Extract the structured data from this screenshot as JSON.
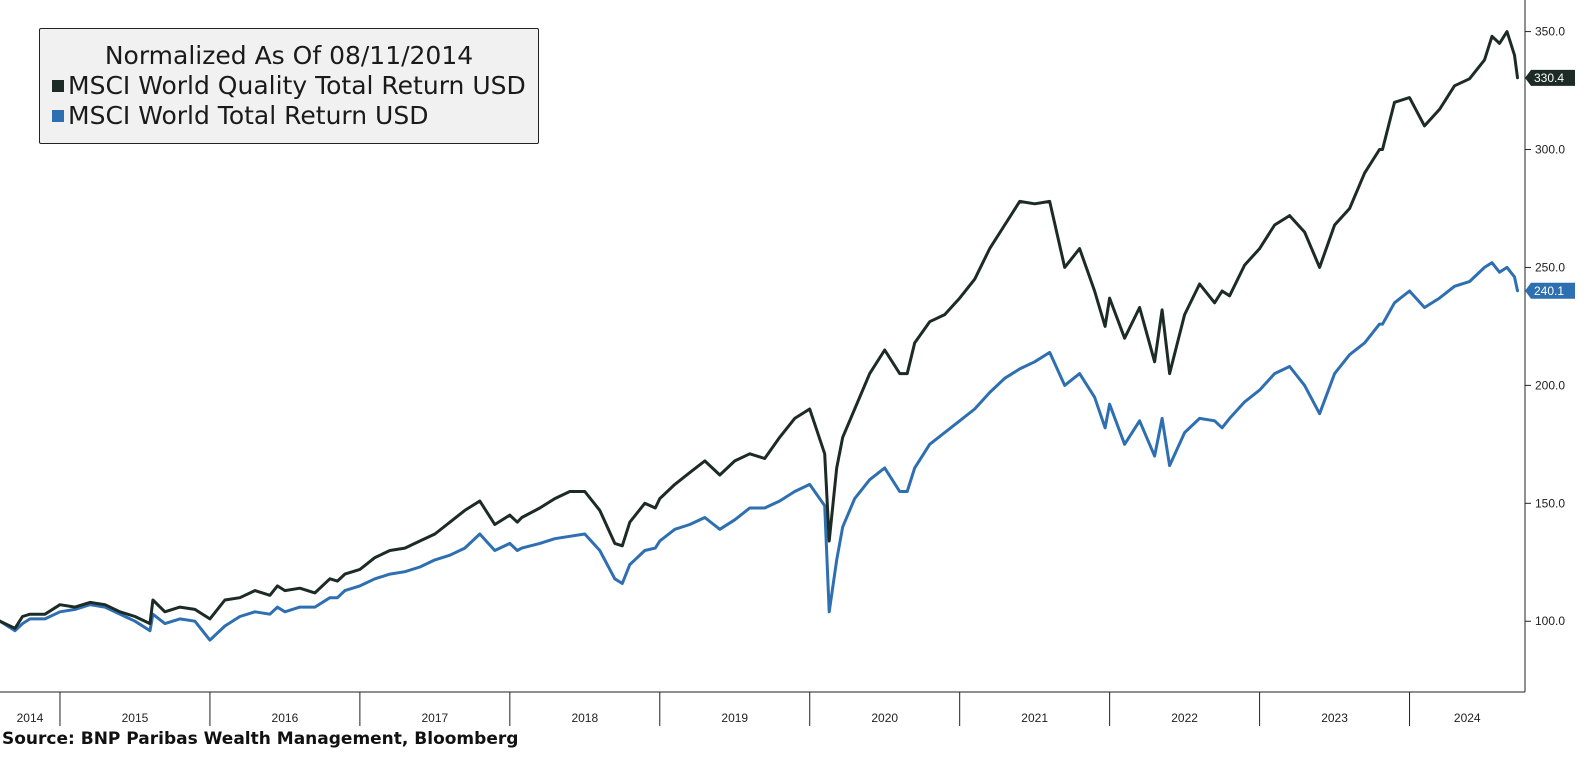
{
  "colors": {
    "quality": "#1c2b25",
    "world": "#2e6fb2",
    "axis": "#222222"
  },
  "chart_data": {
    "type": "line",
    "title": "Normalized As Of 08/11/2014",
    "xlabel": "",
    "ylabel": "",
    "ylim": [
      70,
      360
    ],
    "xlim": [
      2014.6,
      2024.77
    ],
    "grid": false,
    "legend_placement": "top-left",
    "y_ticks": [
      {
        "value": 100,
        "label": "100.0"
      },
      {
        "value": 150,
        "label": "150.0"
      },
      {
        "value": 200,
        "label": "200.0"
      },
      {
        "value": 250,
        "label": "250.0"
      },
      {
        "value": 300,
        "label": "300.0"
      },
      {
        "value": 350,
        "label": "350.0"
      }
    ],
    "x_categories": [
      {
        "label": "2014",
        "start": 2014.6,
        "end": 2015.0
      },
      {
        "label": "2015",
        "start": 2015.0,
        "end": 2016.0
      },
      {
        "label": "2016",
        "start": 2016.0,
        "end": 2017.0
      },
      {
        "label": "2017",
        "start": 2017.0,
        "end": 2018.0
      },
      {
        "label": "2018",
        "start": 2018.0,
        "end": 2019.0
      },
      {
        "label": "2019",
        "start": 2019.0,
        "end": 2020.0
      },
      {
        "label": "2020",
        "start": 2020.0,
        "end": 2021.0
      },
      {
        "label": "2021",
        "start": 2021.0,
        "end": 2022.0
      },
      {
        "label": "2022",
        "start": 2022.0,
        "end": 2023.0
      },
      {
        "label": "2023",
        "start": 2023.0,
        "end": 2024.0
      },
      {
        "label": "2024",
        "start": 2024.0,
        "end": 2024.77
      }
    ],
    "series": [
      {
        "name": "MSCI World Quality Total Return USD",
        "color_key": "quality",
        "last_value": 330.4,
        "last_label": "330.4",
        "x": [
          2014.6,
          2014.7,
          2014.75,
          2014.8,
          2014.9,
          2015.0,
          2015.1,
          2015.2,
          2015.3,
          2015.4,
          2015.5,
          2015.6,
          2015.62,
          2015.7,
          2015.8,
          2015.9,
          2016.0,
          2016.1,
          2016.2,
          2016.3,
          2016.4,
          2016.45,
          2016.5,
          2016.6,
          2016.7,
          2016.8,
          2016.85,
          2016.9,
          2017.0,
          2017.1,
          2017.2,
          2017.3,
          2017.4,
          2017.5,
          2017.6,
          2017.7,
          2017.8,
          2017.9,
          2018.0,
          2018.05,
          2018.08,
          2018.2,
          2018.3,
          2018.4,
          2018.5,
          2018.6,
          2018.7,
          2018.75,
          2018.8,
          2018.9,
          2018.97,
          2019.0,
          2019.1,
          2019.2,
          2019.3,
          2019.4,
          2019.5,
          2019.6,
          2019.7,
          2019.8,
          2019.9,
          2020.0,
          2020.1,
          2020.13,
          2020.18,
          2020.22,
          2020.3,
          2020.4,
          2020.5,
          2020.6,
          2020.65,
          2020.7,
          2020.8,
          2020.9,
          2021.0,
          2021.1,
          2021.2,
          2021.3,
          2021.4,
          2021.5,
          2021.6,
          2021.7,
          2021.8,
          2021.9,
          2021.97,
          2022.0,
          2022.1,
          2022.2,
          2022.3,
          2022.35,
          2022.4,
          2022.5,
          2022.6,
          2022.7,
          2022.75,
          2022.8,
          2022.9,
          2023.0,
          2023.1,
          2023.2,
          2023.3,
          2023.4,
          2023.5,
          2023.6,
          2023.7,
          2023.8,
          2023.82,
          2023.9,
          2024.0,
          2024.1,
          2024.2,
          2024.3,
          2024.4,
          2024.5,
          2024.55,
          2024.6,
          2024.65,
          2024.7,
          2024.72
        ],
        "y": [
          100,
          97,
          102,
          103,
          103,
          107,
          106,
          108,
          107,
          104,
          102,
          99,
          109,
          104,
          106,
          105,
          101,
          109,
          110,
          113,
          111,
          115,
          113,
          114,
          112,
          118,
          117,
          120,
          122,
          127,
          130,
          131,
          134,
          137,
          142,
          147,
          151,
          141,
          145,
          142,
          144,
          148,
          152,
          155,
          155,
          147,
          133,
          132,
          142,
          150,
          148,
          152,
          158,
          163,
          168,
          162,
          168,
          171,
          169,
          178,
          186,
          190,
          171,
          134,
          165,
          178,
          190,
          205,
          215,
          205,
          205,
          218,
          227,
          230,
          237,
          245,
          258,
          268,
          278,
          277,
          278,
          250,
          258,
          240,
          225,
          237,
          220,
          233,
          210,
          232,
          205,
          230,
          243,
          235,
          240,
          238,
          251,
          258,
          268,
          272,
          265,
          250,
          268,
          275,
          290,
          300,
          300,
          320,
          322,
          310,
          317,
          327,
          330,
          338,
          348,
          345,
          350,
          340,
          330.4
        ]
      },
      {
        "name": "MSCI World Total Return USD",
        "color_key": "world",
        "last_value": 240.1,
        "last_label": "240.1",
        "x": [
          2014.6,
          2014.7,
          2014.75,
          2014.8,
          2014.9,
          2015.0,
          2015.1,
          2015.2,
          2015.3,
          2015.4,
          2015.5,
          2015.6,
          2015.62,
          2015.7,
          2015.8,
          2015.9,
          2016.0,
          2016.1,
          2016.2,
          2016.3,
          2016.4,
          2016.45,
          2016.5,
          2016.6,
          2016.7,
          2016.8,
          2016.85,
          2016.9,
          2017.0,
          2017.1,
          2017.2,
          2017.3,
          2017.4,
          2017.5,
          2017.6,
          2017.7,
          2017.8,
          2017.9,
          2018.0,
          2018.05,
          2018.08,
          2018.2,
          2018.3,
          2018.4,
          2018.5,
          2018.6,
          2018.7,
          2018.75,
          2018.8,
          2018.9,
          2018.97,
          2019.0,
          2019.1,
          2019.2,
          2019.3,
          2019.4,
          2019.5,
          2019.6,
          2019.7,
          2019.8,
          2019.9,
          2020.0,
          2020.1,
          2020.13,
          2020.18,
          2020.22,
          2020.3,
          2020.4,
          2020.5,
          2020.6,
          2020.65,
          2020.7,
          2020.8,
          2020.9,
          2021.0,
          2021.1,
          2021.2,
          2021.3,
          2021.4,
          2021.5,
          2021.6,
          2021.7,
          2021.8,
          2021.9,
          2021.97,
          2022.0,
          2022.1,
          2022.2,
          2022.3,
          2022.35,
          2022.4,
          2022.5,
          2022.6,
          2022.7,
          2022.75,
          2022.8,
          2022.9,
          2023.0,
          2023.1,
          2023.2,
          2023.3,
          2023.4,
          2023.5,
          2023.6,
          2023.7,
          2023.8,
          2023.82,
          2023.9,
          2024.0,
          2024.1,
          2024.2,
          2024.3,
          2024.4,
          2024.5,
          2024.55,
          2024.6,
          2024.65,
          2024.7,
          2024.72
        ],
        "y": [
          100,
          96,
          99,
          101,
          101,
          104,
          105,
          107,
          106,
          103,
          100,
          96,
          103,
          99,
          101,
          100,
          92,
          98,
          102,
          104,
          103,
          106,
          104,
          106,
          106,
          110,
          110,
          113,
          115,
          118,
          120,
          121,
          123,
          126,
          128,
          131,
          137,
          130,
          133,
          130,
          131,
          133,
          135,
          136,
          137,
          130,
          118,
          116,
          124,
          130,
          131,
          134,
          139,
          141,
          144,
          139,
          143,
          148,
          148,
          151,
          155,
          158,
          149,
          104,
          126,
          140,
          152,
          160,
          165,
          155,
          155,
          165,
          175,
          180,
          185,
          190,
          197,
          203,
          207,
          210,
          214,
          200,
          205,
          195,
          182,
          192,
          175,
          185,
          170,
          186,
          166,
          180,
          186,
          185,
          182,
          186,
          193,
          198,
          205,
          208,
          200,
          188,
          205,
          213,
          218,
          226,
          226,
          235,
          240,
          233,
          237,
          242,
          244,
          250,
          252,
          248,
          250,
          246,
          240.1
        ]
      }
    ]
  },
  "legend": {
    "title": "Normalized As Of 08/11/2014",
    "items": [
      {
        "label": "MSCI World Quality Total Return USD",
        "color_key": "quality"
      },
      {
        "label": "MSCI World Total Return USD",
        "color_key": "world"
      }
    ]
  },
  "source": "Source: BNP Paribas Wealth Management, Bloomberg"
}
